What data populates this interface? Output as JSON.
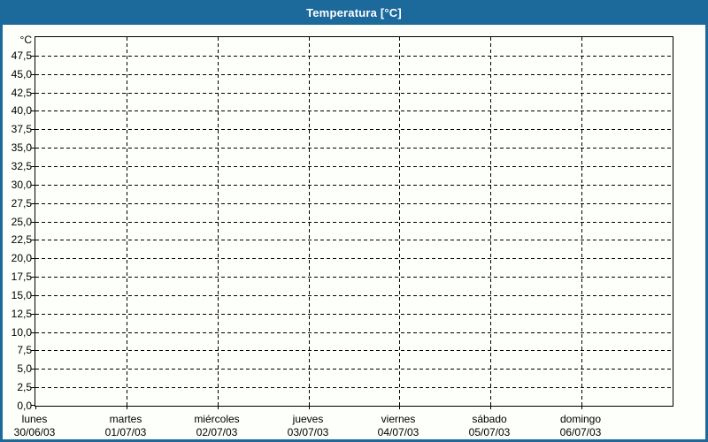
{
  "window": {
    "title": "Temperatura [°C]"
  },
  "colors": {
    "titlebar_bg": "#1c699c",
    "titlebar_text": "#ffffff",
    "frame_border": "#1c699c",
    "content_bg": "#fdfffb",
    "plot_border": "#000000",
    "grid": "#000000",
    "axis_text": "#000000"
  },
  "chart_data": {
    "type": "line",
    "title": "Temperatura [°C]",
    "y_unit": "°C",
    "ylabel": "Temperatura",
    "ylim": [
      0,
      50
    ],
    "ytick_step": 2.5,
    "ytick_labels": [
      "0,0",
      "2,5",
      "5,0",
      "7,5",
      "10,0",
      "12,5",
      "15,0",
      "17,5",
      "20,0",
      "22,5",
      "25,0",
      "27,5",
      "30,0",
      "32,5",
      "35,0",
      "37,5",
      "40,0",
      "42,5",
      "45,0",
      "47,5"
    ],
    "x_categories": [
      {
        "day": "lunes",
        "date": "30/06/03"
      },
      {
        "day": "martes",
        "date": "01/07/03"
      },
      {
        "day": "miércoles",
        "date": "02/07/03"
      },
      {
        "day": "jueves",
        "date": "03/07/03"
      },
      {
        "day": "viernes",
        "date": "04/07/03"
      },
      {
        "day": "sábado",
        "date": "05/07/03"
      },
      {
        "day": "domingo",
        "date": "06/07/03"
      }
    ],
    "series": [],
    "grid": true,
    "legend": false
  }
}
